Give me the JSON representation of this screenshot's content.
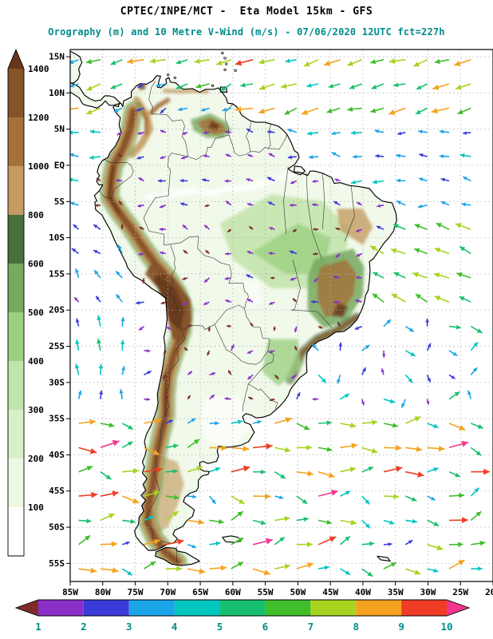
{
  "chart_data": {
    "type": "heatmap",
    "subtype": "geographic map with shaded orography field and 10m wind vector overlay",
    "region": "South America",
    "title": "CPTEC/INPE/MCT -  Eta Model 15km - GFS",
    "subtitle": "Orography (m) and 10 Metre V-Wind (m/s) - 07/06/2020 12UTC fct=227h",
    "text_colors": {
      "title": "#000000",
      "subtitle": "#008b8b",
      "axis_labels": "#000000",
      "wind_bar_labels": "#008b8b"
    },
    "x_axis": {
      "ticks": [
        "85W",
        "80W",
        "75W",
        "70W",
        "65W",
        "60W",
        "55W",
        "50W",
        "45W",
        "40W",
        "35W",
        "30W",
        "25W",
        "20W"
      ],
      "range_deg": [
        -85,
        -20
      ]
    },
    "y_axis": {
      "ticks": [
        "15N",
        "10N",
        "5N",
        "EQ",
        "5S",
        "10S",
        "15S",
        "20S",
        "25S",
        "30S",
        "35S",
        "40S",
        "45S",
        "50S",
        "55S"
      ],
      "range_deg": [
        -57.5,
        16
      ]
    },
    "grid": {
      "style": "dotted",
      "step_deg": 5,
      "color": "#b0b0b0"
    },
    "orography_scale_m": {
      "units": "m",
      "levels": [
        100,
        200,
        300,
        400,
        500,
        600,
        800,
        1000,
        1200,
        1400
      ],
      "colors": [
        "#ffffff",
        "#edf8e4",
        "#d8efc8",
        "#c0e5ab",
        "#9ccf82",
        "#77a95f",
        "#46703c",
        "#c49b63",
        "#a5713a",
        "#85532a",
        "#67371b"
      ]
    },
    "wind_speed_scale_ms": {
      "units": "m/s",
      "levels": [
        1,
        2,
        3,
        4,
        5,
        6,
        7,
        8,
        9,
        10
      ],
      "colors": [
        "#7f2b2b",
        "#8b2fc9",
        "#3a3ad9",
        "#1ba4e8",
        "#00c6c0",
        "#17c06e",
        "#3fbd2b",
        "#a7d41f",
        "#f5a31f",
        "#ee3d24",
        "#f2368f"
      ]
    },
    "wind_regimes": [
      {
        "region": "tropical North Atlantic / Caribbean (north of 5N)",
        "direction": "westward-southwestward trades",
        "speed_ms": "4-9"
      },
      {
        "region": "equatorial Atlantic and Amazon basin",
        "direction": "westward",
        "speed_ms": "2-5"
      },
      {
        "region": "South Atlantic trades (5S-20S)",
        "direction": "northwestward",
        "speed_ms": "4-8"
      },
      {
        "region": "subtropical South Pacific off Chile",
        "direction": "northward",
        "speed_ms": "2-5"
      },
      {
        "region": "southern ocean westerlies (south of 33S)",
        "direction": "eastward",
        "speed_ms": "6-10+"
      },
      {
        "region": "Andes cordillera and continental interior",
        "direction": "weak / variable",
        "speed_ms": "0-3"
      }
    ]
  }
}
